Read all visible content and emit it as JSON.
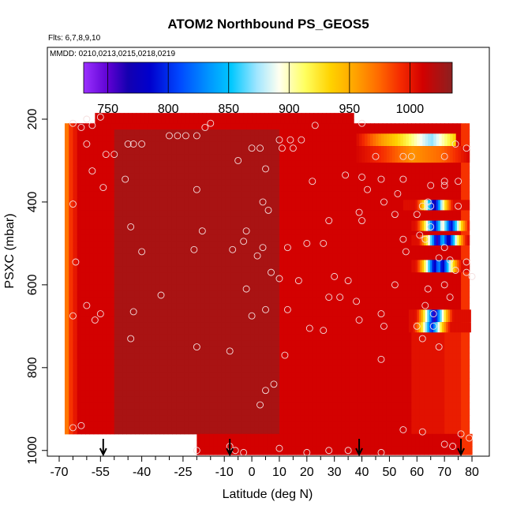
{
  "chart_data": {
    "type": "heatmap",
    "title": "ATOM2 Northbound PS_GEOS5",
    "flights_note": "Flts: 6,7,8,9,10",
    "dates_note": "MMDD: 0210,0213,0215,0218,0219",
    "xlabel": "Latitude (deg N)",
    "ylabel": "PSXC (mbar)",
    "xlim": [
      -70,
      82
    ],
    "ylim": [
      1010,
      160
    ],
    "y_reversed": true,
    "x_ticks": [
      -70,
      -55,
      -40,
      -25,
      -10,
      0,
      10,
      20,
      30,
      40,
      50,
      60,
      70,
      80
    ],
    "x_tick_labels": [
      "-70",
      "-55",
      "-40",
      "-25",
      "-10",
      "0",
      "10",
      "20",
      "30",
      "40",
      "50",
      "60",
      "70",
      "80"
    ],
    "x_minor_ticks": [
      -65,
      -60,
      -50,
      -45,
      -35,
      -30,
      -20,
      -15,
      -5,
      5,
      15,
      25,
      35,
      45,
      55,
      65,
      75
    ],
    "y_ticks": [
      200,
      400,
      600,
      800,
      1000
    ],
    "y_tick_labels": [
      "200",
      "400",
      "600",
      "800",
      "1000"
    ],
    "colorbar": {
      "range": [
        730,
        1035
      ],
      "ticks": [
        750,
        800,
        850,
        900,
        950,
        1000
      ],
      "tick_labels": [
        "750",
        "800",
        "850",
        "900",
        "950",
        "1000"
      ]
    },
    "value_field": {
      "description_note": "",
      "base_value": 1010,
      "dark_region_value": 1025,
      "edge_low_values": [
        970,
        990,
        1000
      ]
    },
    "x_extent_by_pressure": [
      {
        "p_top": 185,
        "p_bottom": 210,
        "x_min": -57,
        "x_max": 37
      },
      {
        "p_top": 210,
        "p_bottom": 960,
        "x_min": -68,
        "x_max": 79
      },
      {
        "p_top": 960,
        "p_bottom": 1010,
        "x_min": -20,
        "x_max": 80
      }
    ],
    "upper_right_band": [
      {
        "p_top": 235,
        "p_bottom": 265,
        "x_start": 37,
        "x_end": 74,
        "value_profile": [
          1010,
          960,
          920,
          870,
          940
        ]
      },
      {
        "p_top": 265,
        "p_bottom": 305,
        "x_start": 37,
        "x_end": 79,
        "value_profile": [
          1010,
          990,
          960,
          975,
          1010
        ]
      }
    ],
    "anomaly_rows": [
      {
        "p_top": 395,
        "p_bottom": 420,
        "x_start": 55,
        "x_end": 79,
        "centers": [
          66
        ],
        "min_value": 760
      },
      {
        "p_top": 445,
        "p_bottom": 470,
        "x_start": 58,
        "x_end": 79,
        "centers": [
          66,
          72
        ],
        "min_value": 780
      },
      {
        "p_top": 480,
        "p_bottom": 505,
        "x_start": 58,
        "x_end": 79,
        "centers": [
          67,
          71
        ],
        "min_value": 760
      },
      {
        "p_top": 540,
        "p_bottom": 570,
        "x_start": 58,
        "x_end": 79,
        "centers": [
          66,
          69
        ],
        "min_value": 770
      },
      {
        "p_top": 660,
        "p_bottom": 690,
        "x_start": 57,
        "x_end": 79,
        "centers": [
          66
        ],
        "min_value": 760
      },
      {
        "p_top": 690,
        "p_bottom": 715,
        "x_start": 57,
        "x_end": 79,
        "centers": [
          65
        ],
        "min_value": 790
      }
    ],
    "arrows_lat": [
      -54,
      -8,
      39,
      76
    ],
    "points": [
      [
        -60,
        200
      ],
      [
        -58,
        215
      ],
      [
        -55,
        195
      ],
      [
        -62,
        220
      ],
      [
        -65,
        210
      ],
      [
        -60,
        260
      ],
      [
        -58,
        325
      ],
      [
        -53,
        285
      ],
      [
        -50,
        285
      ],
      [
        -54,
        365
      ],
      [
        -65,
        405
      ],
      [
        -60,
        650
      ],
      [
        -57,
        685
      ],
      [
        -55,
        670
      ],
      [
        -65,
        675
      ],
      [
        -64,
        545
      ],
      [
        -45,
        260
      ],
      [
        -43,
        260
      ],
      [
        -40,
        260
      ],
      [
        -46,
        345
      ],
      [
        -44,
        460
      ],
      [
        -40,
        520
      ],
      [
        -43,
        665
      ],
      [
        -44,
        730
      ],
      [
        -33,
        625
      ],
      [
        -30,
        240
      ],
      [
        -27,
        240
      ],
      [
        -24,
        240
      ],
      [
        -20,
        240
      ],
      [
        -15,
        210
      ],
      [
        -17,
        220
      ],
      [
        -20,
        370
      ],
      [
        -18,
        470
      ],
      [
        -21,
        515
      ],
      [
        -20,
        750
      ],
      [
        -5,
        300
      ],
      [
        -3,
        495
      ],
      [
        -2,
        470
      ],
      [
        -7,
        515
      ],
      [
        -8,
        760
      ],
      [
        -2,
        610
      ],
      [
        0,
        270
      ],
      [
        3,
        270
      ],
      [
        4,
        400
      ],
      [
        6,
        420
      ],
      [
        5,
        320
      ],
      [
        4,
        510
      ],
      [
        2,
        530
      ],
      [
        0,
        675
      ],
      [
        5,
        660
      ],
      [
        7,
        570
      ],
      [
        10,
        250
      ],
      [
        11,
        270
      ],
      [
        13,
        510
      ],
      [
        14,
        250
      ],
      [
        15,
        270
      ],
      [
        18,
        250
      ],
      [
        10,
        585
      ],
      [
        13,
        660
      ],
      [
        12,
        770
      ],
      [
        8,
        840
      ],
      [
        5,
        855
      ],
      [
        3,
        890
      ],
      [
        20,
        500
      ],
      [
        22,
        350
      ],
      [
        23,
        215
      ],
      [
        26,
        500
      ],
      [
        28,
        445
      ],
      [
        30,
        580
      ],
      [
        28,
        630
      ],
      [
        26,
        710
      ],
      [
        21,
        705
      ],
      [
        17,
        590
      ],
      [
        32,
        630
      ],
      [
        34,
        335
      ],
      [
        35,
        590
      ],
      [
        38,
        640
      ],
      [
        40,
        340
      ],
      [
        42,
        370
      ],
      [
        45,
        290
      ],
      [
        40,
        445
      ],
      [
        39,
        425
      ],
      [
        48,
        400
      ],
      [
        47,
        345
      ],
      [
        39,
        685
      ],
      [
        40,
        210
      ],
      [
        47,
        670
      ],
      [
        55,
        290
      ],
      [
        52,
        430
      ],
      [
        55,
        345
      ],
      [
        53,
        380
      ],
      [
        55,
        490
      ],
      [
        56,
        520
      ],
      [
        58,
        290
      ],
      [
        60,
        430
      ],
      [
        62,
        410
      ],
      [
        64,
        400
      ],
      [
        65,
        410
      ],
      [
        70,
        290
      ],
      [
        70,
        350
      ],
      [
        65,
        360
      ],
      [
        65,
        460
      ],
      [
        63,
        490
      ],
      [
        70,
        510
      ],
      [
        68,
        535
      ],
      [
        72,
        540
      ],
      [
        78,
        545
      ],
      [
        74,
        565
      ],
      [
        78,
        570
      ],
      [
        61,
        480
      ],
      [
        64,
        610
      ],
      [
        63,
        650
      ],
      [
        66,
        670
      ],
      [
        60,
        700
      ],
      [
        62,
        730
      ],
      [
        66,
        700
      ],
      [
        68,
        750
      ],
      [
        70,
        600
      ],
      [
        72,
        630
      ],
      [
        74,
        260
      ],
      [
        70,
        360
      ],
      [
        75,
        410
      ],
      [
        75,
        350
      ],
      [
        78,
        270
      ],
      [
        80,
        580
      ],
      [
        52,
        600
      ],
      [
        48,
        700
      ],
      [
        47,
        780
      ],
      [
        55,
        950
      ],
      [
        62,
        955
      ],
      [
        70,
        985
      ],
      [
        76,
        960
      ],
      [
        79,
        970
      ],
      [
        -65,
        945
      ],
      [
        -62,
        940
      ],
      [
        -20,
        1000
      ],
      [
        -8,
        990
      ],
      [
        -6,
        1000
      ],
      [
        -3,
        1005
      ],
      [
        10,
        995
      ],
      [
        20,
        1005
      ],
      [
        28,
        1000
      ],
      [
        35,
        1000
      ],
      [
        47,
        1005
      ],
      [
        73,
        990
      ]
    ]
  }
}
